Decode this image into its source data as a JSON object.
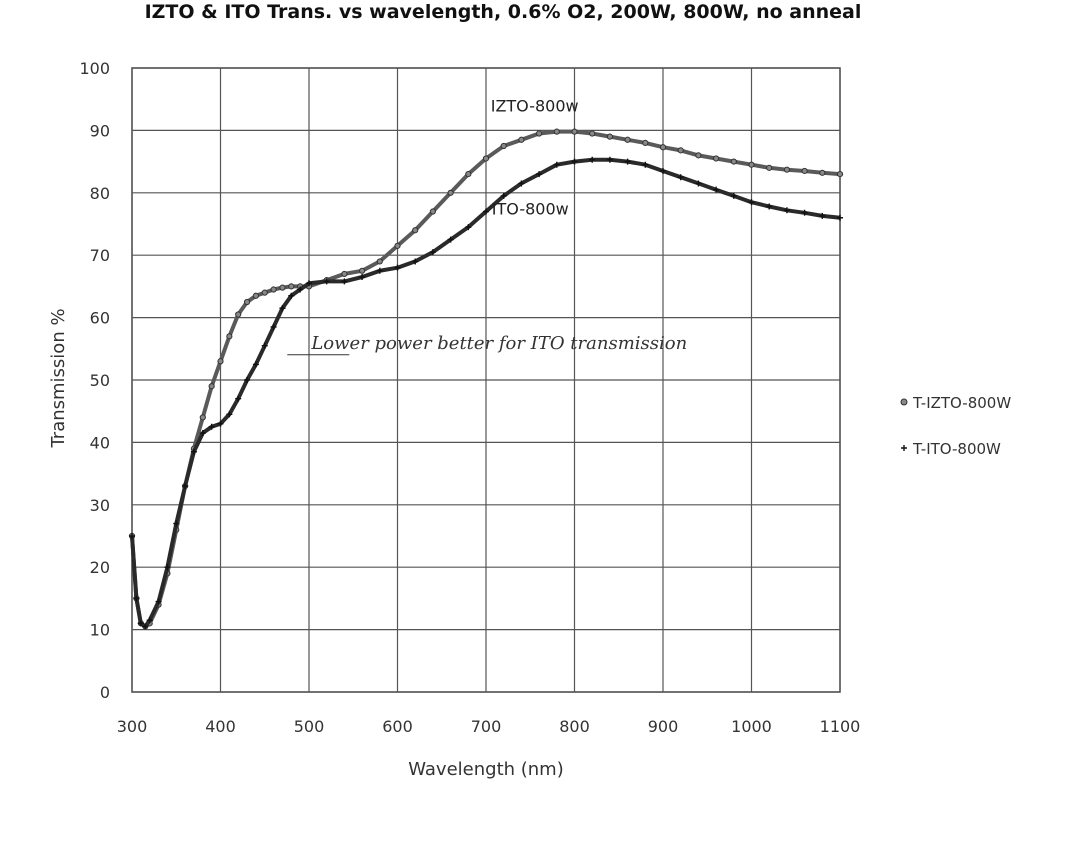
{
  "chart_data": {
    "type": "line",
    "title": "IZTO & ITO Trans. vs wavelength, 0.6% O2, 200W, 800W, no anneal",
    "xlabel": "Wavelength (nm)",
    "ylabel": "Transmission %",
    "xlim": [
      300,
      1100
    ],
    "ylim": [
      0,
      100
    ],
    "x_ticks": [
      300,
      400,
      500,
      600,
      700,
      800,
      900,
      1000,
      1100
    ],
    "y_ticks": [
      0,
      10,
      20,
      30,
      40,
      50,
      60,
      70,
      80,
      90,
      100
    ],
    "grid": true,
    "legend_position": "right",
    "series": [
      {
        "name": "T-IZTO-800W",
        "marker": "circle",
        "color": "#5a5a5a",
        "x": [
          300,
          305,
          310,
          315,
          320,
          330,
          340,
          350,
          360,
          370,
          380,
          390,
          400,
          410,
          420,
          430,
          440,
          450,
          460,
          470,
          480,
          490,
          500,
          520,
          540,
          560,
          580,
          600,
          620,
          640,
          660,
          680,
          700,
          720,
          740,
          760,
          780,
          800,
          820,
          840,
          860,
          880,
          900,
          920,
          940,
          960,
          980,
          1000,
          1020,
          1040,
          1060,
          1080,
          1100
        ],
        "y": [
          25,
          15,
          11,
          10.5,
          11,
          14,
          19,
          26,
          33,
          39,
          44,
          49,
          53,
          57,
          60.5,
          62.5,
          63.5,
          64,
          64.5,
          64.8,
          65,
          65,
          65,
          66,
          67,
          67.5,
          69,
          71.5,
          74,
          77,
          80,
          83,
          85.5,
          87.5,
          88.5,
          89.5,
          89.8,
          89.8,
          89.5,
          89,
          88.5,
          88,
          87.3,
          86.8,
          86,
          85.5,
          85,
          84.5,
          84,
          83.7,
          83.5,
          83.2,
          83
        ]
      },
      {
        "name": "T-ITO-800W",
        "marker": "plus",
        "color": "#2a2a2a",
        "x": [
          300,
          305,
          310,
          315,
          320,
          330,
          340,
          350,
          360,
          370,
          380,
          390,
          400,
          410,
          420,
          430,
          440,
          450,
          460,
          470,
          480,
          490,
          500,
          520,
          540,
          560,
          580,
          600,
          620,
          640,
          660,
          680,
          700,
          720,
          740,
          760,
          780,
          800,
          820,
          840,
          860,
          880,
          900,
          920,
          940,
          960,
          980,
          1000,
          1020,
          1040,
          1060,
          1080,
          1100
        ],
        "y": [
          25,
          15,
          11,
          10.5,
          11.5,
          14.5,
          20,
          27,
          33,
          38.5,
          41.5,
          42.5,
          43,
          44.5,
          47,
          50,
          52.5,
          55.5,
          58.5,
          61.5,
          63.5,
          64.5,
          65.5,
          65.8,
          65.8,
          66.5,
          67.5,
          68,
          69,
          70.5,
          72.5,
          74.5,
          77,
          79.5,
          81.5,
          83,
          84.5,
          85,
          85.3,
          85.3,
          85,
          84.5,
          83.5,
          82.5,
          81.5,
          80.5,
          79.5,
          78.5,
          77.8,
          77.2,
          76.8,
          76.3,
          76
        ]
      }
    ],
    "annotations": [
      {
        "text": "IZTO-800w",
        "x": 755,
        "y": 93
      },
      {
        "text": "ITO-800w",
        "x": 750,
        "y": 76.5
      },
      {
        "text": "Lower power better for ITO transmission",
        "x": 715,
        "y": 55
      }
    ]
  }
}
